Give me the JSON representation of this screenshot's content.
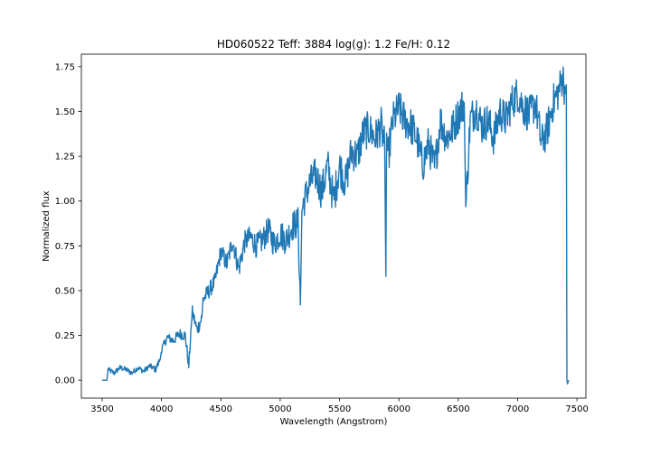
{
  "chart_data": {
    "type": "line",
    "title": "HD060522  Teff: 3884 log(g): 1.2 Fe/H: 0.12",
    "xlabel": "Wavelength (Angstrom)",
    "ylabel": "Normalized flux",
    "xlim": [
      3325,
      7575
    ],
    "ylim": [
      -0.1,
      1.82
    ],
    "xticks": [
      3500,
      4000,
      4500,
      5000,
      5500,
      6000,
      6500,
      7000,
      7500
    ],
    "yticks": [
      0.0,
      0.25,
      0.5,
      0.75,
      1.0,
      1.25,
      1.5,
      1.75
    ],
    "ytick_labels": [
      "0.00",
      "0.25",
      "0.50",
      "0.75",
      "1.00",
      "1.25",
      "1.50",
      "1.75"
    ],
    "grid": false,
    "series": [
      {
        "color": "#1f77b4",
        "x": [
          3500,
          3540,
          3550,
          3600,
          3650,
          3700,
          3750,
          3800,
          3850,
          3900,
          3950,
          3990,
          4000,
          4050,
          4100,
          4150,
          4200,
          4230,
          4250,
          4260,
          4300,
          4340,
          4350,
          4400,
          4450,
          4500,
          4550,
          4600,
          4650,
          4700,
          4750,
          4800,
          4850,
          4900,
          4950,
          5000,
          5050,
          5100,
          5150,
          5170,
          5183,
          5200,
          5250,
          5300,
          5350,
          5400,
          5450,
          5500,
          5550,
          5600,
          5650,
          5700,
          5750,
          5800,
          5850,
          5880,
          5890,
          5896,
          5910,
          5950,
          6000,
          6050,
          6100,
          6150,
          6200,
          6250,
          6300,
          6350,
          6400,
          6450,
          6500,
          6550,
          6563,
          6600,
          6650,
          6700,
          6750,
          6800,
          6850,
          6900,
          6950,
          7000,
          7050,
          7100,
          7150,
          7200,
          7250,
          7300,
          7350,
          7380,
          7400,
          7410,
          7415,
          7420,
          7430
        ],
        "y": [
          0.0,
          0.0,
          0.06,
          0.04,
          0.07,
          0.06,
          0.04,
          0.07,
          0.05,
          0.08,
          0.06,
          0.12,
          0.17,
          0.24,
          0.22,
          0.26,
          0.25,
          0.08,
          0.3,
          0.38,
          0.28,
          0.35,
          0.45,
          0.5,
          0.55,
          0.72,
          0.65,
          0.78,
          0.62,
          0.77,
          0.8,
          0.75,
          0.78,
          0.84,
          0.76,
          0.82,
          0.78,
          0.86,
          0.88,
          0.42,
          0.95,
          1.0,
          1.1,
          1.15,
          1.05,
          1.2,
          1.0,
          1.2,
          1.1,
          1.28,
          1.25,
          1.38,
          1.4,
          1.35,
          1.42,
          1.3,
          0.58,
          1.38,
          1.25,
          1.45,
          1.52,
          1.45,
          1.42,
          1.35,
          1.2,
          1.32,
          1.18,
          1.45,
          1.35,
          1.4,
          1.48,
          1.55,
          0.95,
          1.45,
          1.52,
          1.42,
          1.45,
          1.35,
          1.5,
          1.45,
          1.55,
          1.6,
          1.52,
          1.48,
          1.55,
          1.32,
          1.4,
          1.55,
          1.62,
          1.7,
          1.6,
          1.65,
          0.0,
          -0.02,
          0.0
        ]
      }
    ]
  }
}
